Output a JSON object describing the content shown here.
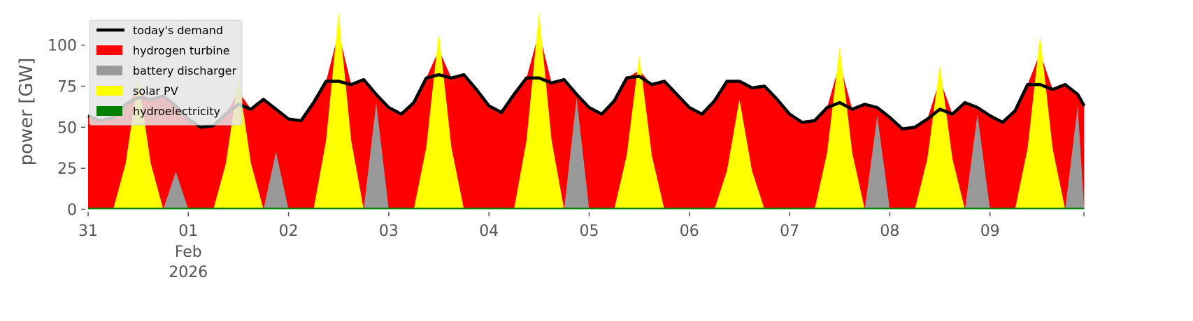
{
  "chart_data": {
    "type": "area",
    "title": "",
    "xlabel": "",
    "ylabel": "power [GW]",
    "x_unit": "hours since 31 Jan 2026 00:00",
    "x_step_hours": 3,
    "xlim_days": [
      0,
      9.94
    ],
    "ylim": [
      0,
      119
    ],
    "yticks": [
      0,
      25,
      50,
      75,
      100
    ],
    "xticks": [
      {
        "day": 0,
        "label": "31"
      },
      {
        "day": 1,
        "label": "01",
        "sub1": "Feb",
        "sub2": "2026"
      },
      {
        "day": 2,
        "label": "02"
      },
      {
        "day": 3,
        "label": "03"
      },
      {
        "day": 4,
        "label": "04"
      },
      {
        "day": 5,
        "label": "05"
      },
      {
        "day": 6,
        "label": "06"
      },
      {
        "day": 7,
        "label": "07"
      },
      {
        "day": 8,
        "label": "08"
      },
      {
        "day": 9,
        "label": "09"
      }
    ],
    "legend_position": "top-left",
    "legend": [
      {
        "label": "today's demand",
        "color": "#000000",
        "kind": "line"
      },
      {
        "label": "hydrogen turbine",
        "color": "#ff0000",
        "kind": "patch"
      },
      {
        "label": "battery discharger",
        "color": "#999999",
        "kind": "patch"
      },
      {
        "label": "solar PV",
        "color": "#ffff00",
        "kind": "patch"
      },
      {
        "label": "hydroelectricity",
        "color": "#008000",
        "kind": "patch"
      }
    ],
    "demand": [
      57,
      54,
      56,
      64,
      68,
      67,
      69,
      63,
      55,
      50,
      51,
      58,
      64,
      61,
      67,
      61,
      55,
      54,
      65,
      78,
      78,
      76,
      79,
      70,
      62,
      58,
      65,
      80,
      82,
      80,
      82,
      73,
      63,
      59,
      70,
      80,
      80,
      77,
      79,
      70,
      62,
      58,
      66,
      80,
      81,
      76,
      78,
      70,
      62,
      58,
      66,
      78,
      78,
      74,
      75,
      67,
      58,
      53,
      54,
      62,
      65,
      61,
      64,
      62,
      56,
      49,
      50,
      55,
      61,
      58,
      65,
      62,
      57,
      53,
      60,
      76,
      76,
      73,
      76,
      70,
      63
    ],
    "solar_peaks_noon": [
      80,
      80,
      120,
      108,
      120,
      94,
      67,
      99,
      88,
      106
    ],
    "solar_profile_3h": [
      0,
      0,
      0,
      0.35,
      1,
      0.35,
      0,
      0
    ],
    "battery_21h": [
      23,
      35,
      65,
      0,
      68,
      0,
      0,
      57,
      58,
      63
    ],
    "hydro": 1
  }
}
